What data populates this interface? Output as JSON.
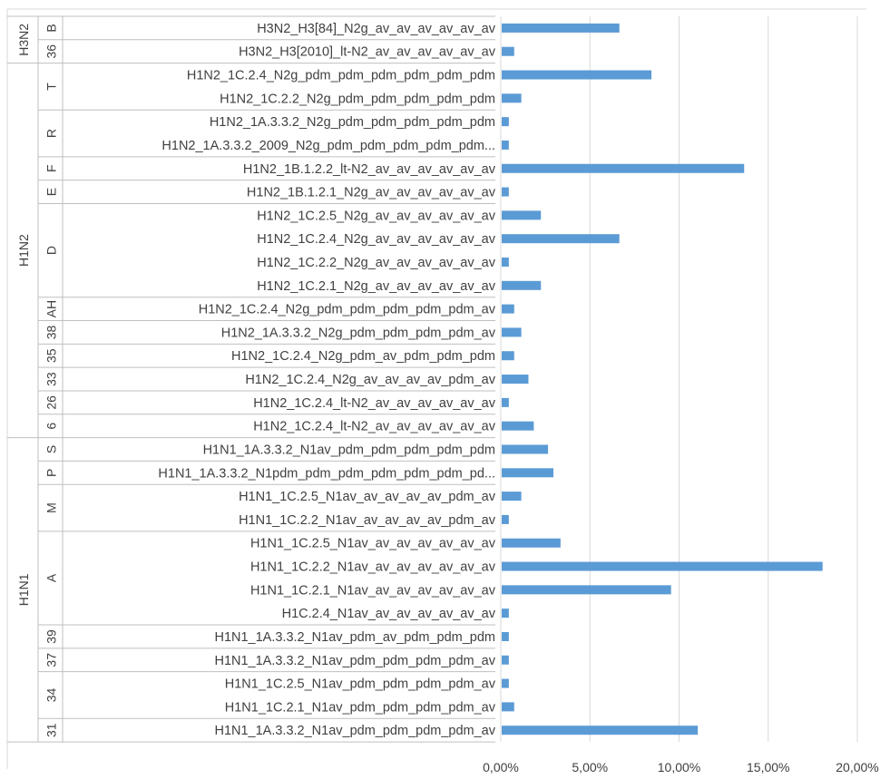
{
  "chart_data": {
    "type": "bar",
    "orientation": "horizontal",
    "title": "",
    "xlabel": "",
    "ylabel": "",
    "xlim": [
      0,
      0.2
    ],
    "x_ticks": [
      0,
      0.05,
      0.1,
      0.15,
      0.2
    ],
    "x_tick_labels": [
      "0,00%",
      "5,00%",
      "10,00%",
      "15,00%",
      "20,00%"
    ],
    "grid": "vertical",
    "legend": "none",
    "bar_color": "#5B9BD5",
    "rows": [
      {
        "label": "H3N2_H3[84]_N2g_av_av_av_av_av_av",
        "value": 0.066
      },
      {
        "label": "H3N2_H3[2010]_lt-N2_av_av_av_av_av_av",
        "value": 0.007
      },
      {
        "label": "H1N2_1C.2.4_N2g_pdm_pdm_pdm_pdm_pdm_pdm",
        "value": 0.084
      },
      {
        "label": "H1N2_1C.2.2_N2g_pdm_pdm_pdm_pdm_pdm",
        "value": 0.011
      },
      {
        "label": "H1N2_1A.3.3.2_N2g_pdm_pdm_pdm_pdm_pdm",
        "value": 0.004
      },
      {
        "label": "H1N2_1A.3.3.2_2009_N2g_pdm_pdm_pdm_pdm_pdm...",
        "value": 0.004
      },
      {
        "label": "H1N2_1B.1.2.2_lt-N2_av_av_av_av_av_av",
        "value": 0.136
      },
      {
        "label": "H1N2_1B.1.2.1_N2g_av_av_av_av_av_av",
        "value": 0.004
      },
      {
        "label": "H1N2_1C.2.5_N2g_av_av_av_av_av_av",
        "value": 0.022
      },
      {
        "label": "H1N2_1C.2.4_N2g_av_av_av_av_av_av",
        "value": 0.066
      },
      {
        "label": "H1N2_1C.2.2_N2g_av_av_av_av_av_av",
        "value": 0.004
      },
      {
        "label": "H1N2_1C.2.1_N2g_av_av_av_av_av_av",
        "value": 0.022
      },
      {
        "label": "H1N2_1C.2.4_N2g_pdm_pdm_pdm_pdm_pdm_av",
        "value": 0.007
      },
      {
        "label": "H1N2_1A.3.3.2_N2g_pdm_pdm_pdm_pdm_av",
        "value": 0.011
      },
      {
        "label": "H1N2_1C.2.4_N2g_pdm_av_pdm_pdm_pdm",
        "value": 0.007
      },
      {
        "label": "H1N2_1C.2.4_N2g_av_av_av_av_pdm_av",
        "value": 0.015
      },
      {
        "label": "H1N2_1C.2.4_lt-N2_av_av_av_av_av_av",
        "value": 0.004
      },
      {
        "label": "H1N2_1C.2.4_lt-N2_av_av_av_av_av_av",
        "value": 0.018
      },
      {
        "label": "H1N1_1A.3.3.2_N1av_pdm_pdm_pdm_pdm_pdm",
        "value": 0.026
      },
      {
        "label": "H1N1_1A.3.3.2_N1pdm_pdm_pdm_pdm_pdm_pdm_pd...",
        "value": 0.029
      },
      {
        "label": "H1N1_1C.2.5_N1av_av_av_av_av_pdm_av",
        "value": 0.011
      },
      {
        "label": "H1N1_1C.2.2_N1av_av_av_av_av_pdm_av",
        "value": 0.004
      },
      {
        "label": "H1N1_1C.2.5_N1av_av_av_av_av_av_av",
        "value": 0.033
      },
      {
        "label": "H1N1_1C.2.2_N1av_av_av_av_av_av_av",
        "value": 0.18
      },
      {
        "label": "H1N1_1C.2.1_N1av_av_av_av_av_av_av",
        "value": 0.095
      },
      {
        "label": "H1C.2.4_N1av_av_av_av_av_av_av",
        "value": 0.004
      },
      {
        "label": "H1N1_1A.3.3.2_N1av_pdm_av_pdm_pdm_pdm",
        "value": 0.004
      },
      {
        "label": "H1N1_1A.3.3.2_N1av_pdm_pdm_pdm_pdm_av",
        "value": 0.004
      },
      {
        "label": "H1N1_1C.2.5_N1av_pdm_pdm_pdm_pdm_av",
        "value": 0.004
      },
      {
        "label": "H1N1_1C.2.1_N1av_pdm_pdm_pdm_pdm_av",
        "value": 0.007
      },
      {
        "label": "H1N1_1A.3.3.2_N1av_pdm_pdm_pdm_pdm_av",
        "value": 0.11
      }
    ],
    "mid_groups": [
      {
        "label": "B",
        "rows": 1
      },
      {
        "label": "36",
        "rows": 1
      },
      {
        "label": "T",
        "rows": 2
      },
      {
        "label": "R",
        "rows": 2
      },
      {
        "label": "F",
        "rows": 1
      },
      {
        "label": "E",
        "rows": 1
      },
      {
        "label": "D",
        "rows": 4
      },
      {
        "label": "AH",
        "rows": 1
      },
      {
        "label": "38",
        "rows": 1
      },
      {
        "label": "35",
        "rows": 1
      },
      {
        "label": "33",
        "rows": 1
      },
      {
        "label": "26",
        "rows": 1
      },
      {
        "label": "6",
        "rows": 1
      },
      {
        "label": "S",
        "rows": 1
      },
      {
        "label": "P",
        "rows": 1
      },
      {
        "label": "M",
        "rows": 2
      },
      {
        "label": "A",
        "rows": 4
      },
      {
        "label": "39",
        "rows": 1
      },
      {
        "label": "37",
        "rows": 1
      },
      {
        "label": "34",
        "rows": 2
      },
      {
        "label": "31",
        "rows": 1
      }
    ],
    "outer_groups": [
      {
        "label": "H3N2",
        "rows": 2
      },
      {
        "label": "H1N2",
        "rows": 16
      },
      {
        "label": "H1N1",
        "rows": 13
      }
    ]
  }
}
